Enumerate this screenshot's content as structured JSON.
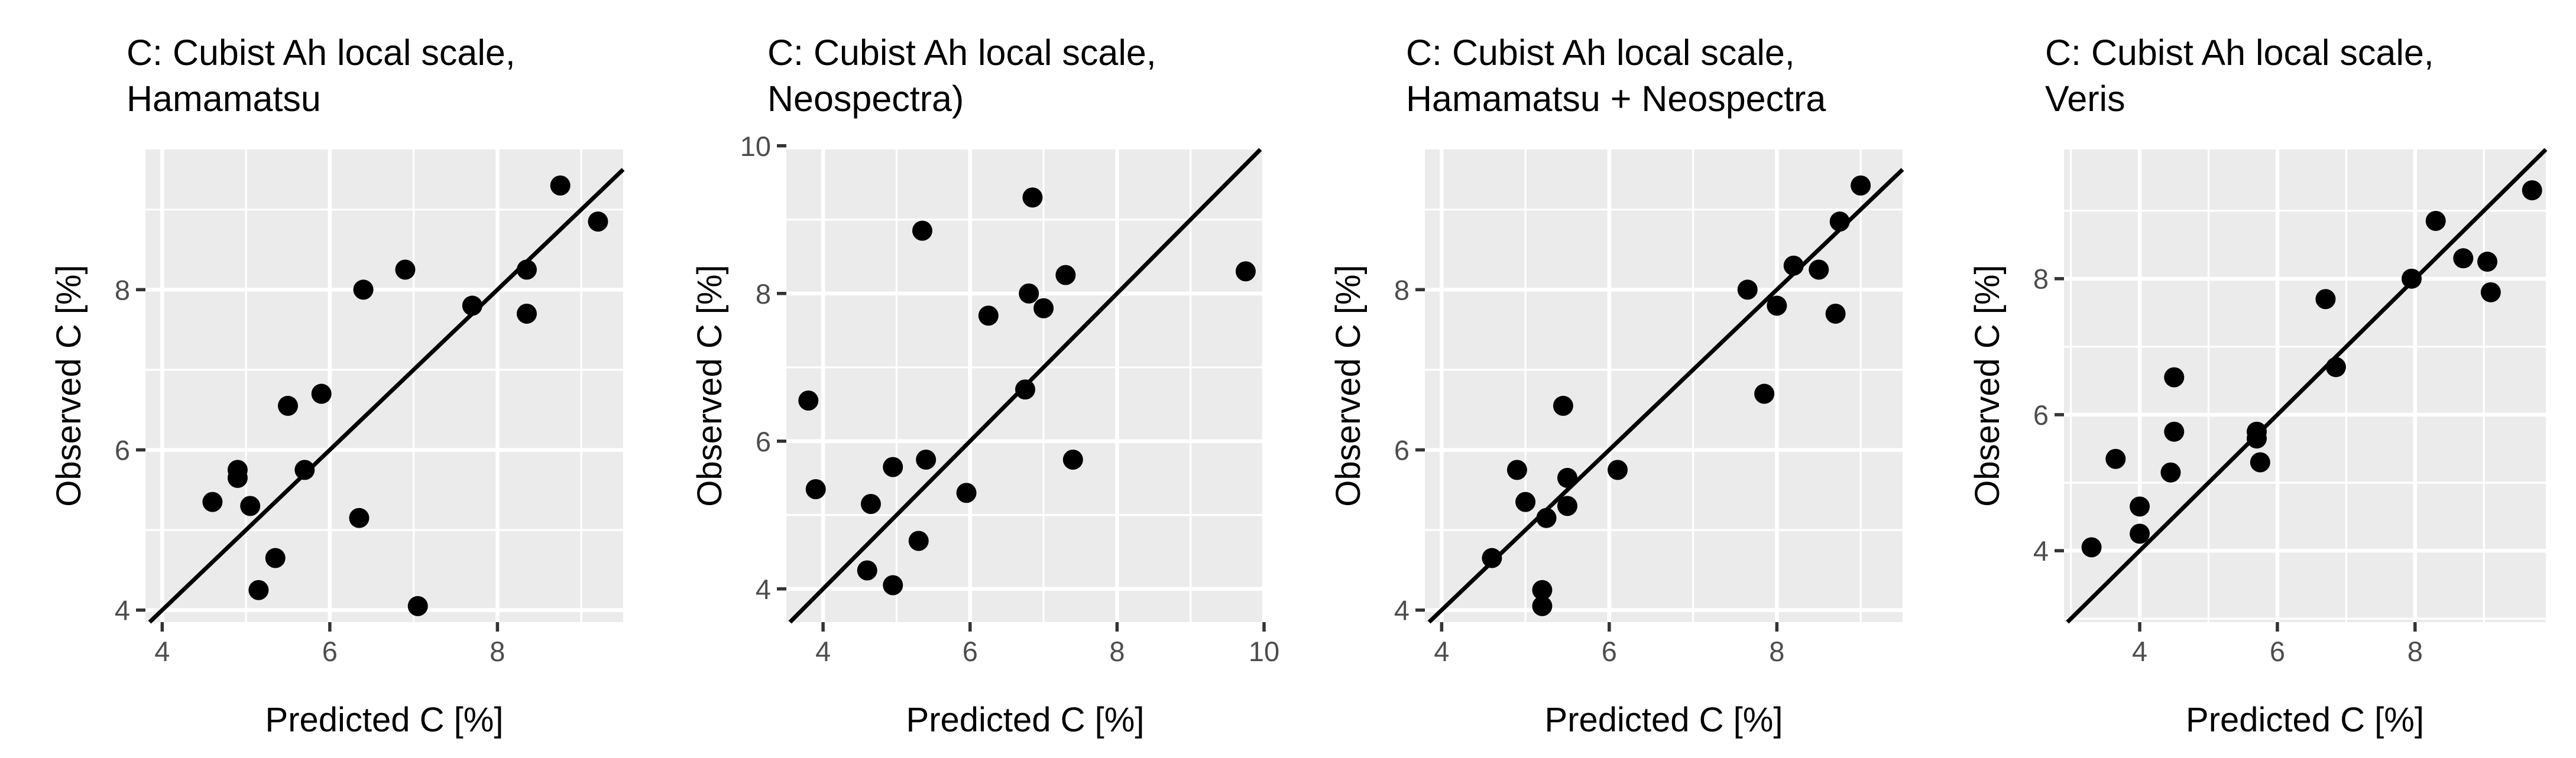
{
  "chart_data": [
    {
      "type": "scatter",
      "title": [
        "C: Cubist Ah local scale,",
        "Hamamatsu"
      ],
      "xlabel": "Predicted C [%]",
      "ylabel": "Observed C [%]",
      "xlim": [
        3.8,
        9.5
      ],
      "ylim": [
        3.85,
        9.75
      ],
      "xticks": [
        4,
        6,
        8
      ],
      "yticks": [
        4,
        6,
        8
      ],
      "xtick_labels": [
        "4",
        "6",
        "8"
      ],
      "ytick_labels": [
        "4",
        "6",
        "8"
      ],
      "reference_line": "y = x",
      "points": [
        {
          "x": 4.6,
          "y": 5.35
        },
        {
          "x": 4.9,
          "y": 5.75
        },
        {
          "x": 4.9,
          "y": 5.65
        },
        {
          "x": 5.05,
          "y": 5.3
        },
        {
          "x": 5.15,
          "y": 4.25
        },
        {
          "x": 5.35,
          "y": 4.65
        },
        {
          "x": 5.5,
          "y": 6.55
        },
        {
          "x": 5.7,
          "y": 5.75
        },
        {
          "x": 5.9,
          "y": 6.7
        },
        {
          "x": 6.35,
          "y": 5.15
        },
        {
          "x": 6.4,
          "y": 8.0
        },
        {
          "x": 6.9,
          "y": 8.25
        },
        {
          "x": 7.05,
          "y": 4.05
        },
        {
          "x": 7.7,
          "y": 7.8
        },
        {
          "x": 8.35,
          "y": 8.25
        },
        {
          "x": 8.35,
          "y": 7.7
        },
        {
          "x": 8.75,
          "y": 9.3
        },
        {
          "x": 9.2,
          "y": 8.85
        }
      ]
    },
    {
      "type": "scatter",
      "title": [
        "C: Cubist  Ah local scale,",
        "Neospectra)"
      ],
      "xlabel": "Predicted C [%]",
      "ylabel": "Observed C [%]",
      "xlim": [
        3.5,
        10.0
      ],
      "ylim": [
        3.55,
        9.95
      ],
      "xticks": [
        4,
        6,
        8,
        10
      ],
      "yticks": [
        4,
        6,
        8,
        10
      ],
      "xtick_labels": [
        "4",
        "6",
        "8",
        "10"
      ],
      "ytick_labels": [
        "4",
        "6",
        "8",
        "10"
      ],
      "reference_line": "y = x",
      "points": [
        {
          "x": 3.8,
          "y": 6.55
        },
        {
          "x": 3.9,
          "y": 5.35
        },
        {
          "x": 4.6,
          "y": 4.25
        },
        {
          "x": 4.65,
          "y": 5.15
        },
        {
          "x": 4.95,
          "y": 4.05
        },
        {
          "x": 4.95,
          "y": 5.65
        },
        {
          "x": 5.3,
          "y": 4.65
        },
        {
          "x": 5.35,
          "y": 8.85
        },
        {
          "x": 5.4,
          "y": 5.75
        },
        {
          "x": 5.95,
          "y": 5.3
        },
        {
          "x": 6.25,
          "y": 7.7
        },
        {
          "x": 6.75,
          "y": 6.7
        },
        {
          "x": 6.8,
          "y": 8.0
        },
        {
          "x": 6.85,
          "y": 9.3
        },
        {
          "x": 7.0,
          "y": 7.8
        },
        {
          "x": 7.3,
          "y": 8.25
        },
        {
          "x": 7.4,
          "y": 5.75
        },
        {
          "x": 9.75,
          "y": 8.3
        }
      ]
    },
    {
      "type": "scatter",
      "title": [
        "C: Cubist Ah local scale,",
        "Hamamatsu + Neospectra"
      ],
      "xlabel": "Predicted C [%]",
      "ylabel": "Observed C [%]",
      "xlim": [
        3.8,
        9.5
      ],
      "ylim": [
        3.85,
        9.75
      ],
      "xticks": [
        4,
        6,
        8
      ],
      "yticks": [
        4,
        6,
        8
      ],
      "xtick_labels": [
        "4",
        "6",
        "8"
      ],
      "ytick_labels": [
        "4",
        "6",
        "8"
      ],
      "reference_line": "y = x",
      "points": [
        {
          "x": 4.6,
          "y": 4.65
        },
        {
          "x": 4.9,
          "y": 5.75
        },
        {
          "x": 5.0,
          "y": 5.35
        },
        {
          "x": 5.2,
          "y": 4.25
        },
        {
          "x": 5.2,
          "y": 4.05
        },
        {
          "x": 5.25,
          "y": 5.15
        },
        {
          "x": 5.45,
          "y": 6.55
        },
        {
          "x": 5.5,
          "y": 5.65
        },
        {
          "x": 5.5,
          "y": 5.3
        },
        {
          "x": 6.1,
          "y": 5.75
        },
        {
          "x": 7.65,
          "y": 8.0
        },
        {
          "x": 7.85,
          "y": 6.7
        },
        {
          "x": 8.0,
          "y": 7.8
        },
        {
          "x": 8.2,
          "y": 8.3
        },
        {
          "x": 8.5,
          "y": 8.25
        },
        {
          "x": 8.7,
          "y": 7.7
        },
        {
          "x": 8.75,
          "y": 8.85
        },
        {
          "x": 9.0,
          "y": 9.3
        }
      ]
    },
    {
      "type": "scatter",
      "title": [
        "C: Cubist Ah local scale,",
        "Veris"
      ],
      "xlabel": "Predicted C [%]",
      "ylabel": "Observed C [%]",
      "xlim": [
        2.9,
        9.9
      ],
      "ylim": [
        2.95,
        9.9
      ],
      "xticks": [
        4,
        6,
        8
      ],
      "yticks": [
        4,
        6,
        8
      ],
      "xtick_labels": [
        "4",
        "6",
        "8"
      ],
      "ytick_labels": [
        "4",
        "6",
        "8"
      ],
      "reference_line": "y = x",
      "points": [
        {
          "x": 3.3,
          "y": 4.05
        },
        {
          "x": 3.65,
          "y": 5.35
        },
        {
          "x": 4.0,
          "y": 4.25
        },
        {
          "x": 4.0,
          "y": 4.65
        },
        {
          "x": 4.45,
          "y": 5.15
        },
        {
          "x": 4.5,
          "y": 5.75
        },
        {
          "x": 4.5,
          "y": 6.55
        },
        {
          "x": 5.7,
          "y": 5.75
        },
        {
          "x": 5.7,
          "y": 5.65
        },
        {
          "x": 5.75,
          "y": 5.3
        },
        {
          "x": 6.7,
          "y": 7.7
        },
        {
          "x": 6.85,
          "y": 6.7
        },
        {
          "x": 7.95,
          "y": 8.0
        },
        {
          "x": 8.3,
          "y": 8.85
        },
        {
          "x": 8.7,
          "y": 8.3
        },
        {
          "x": 9.05,
          "y": 8.25
        },
        {
          "x": 9.1,
          "y": 7.8
        },
        {
          "x": 9.7,
          "y": 9.3
        }
      ]
    }
  ]
}
